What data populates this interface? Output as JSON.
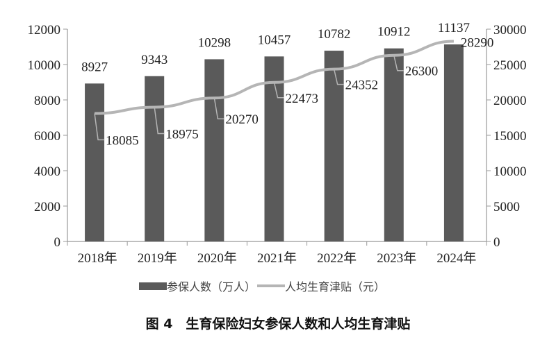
{
  "chart_data": {
    "type": "bar",
    "title": "图 4　生育保险妇女参保人数和人均生育津贴",
    "categories": [
      "2018年",
      "2019年",
      "2020年",
      "2021年",
      "2022年",
      "2023年",
      "2024年"
    ],
    "series": [
      {
        "name": "参保人数（万人）",
        "type": "bar",
        "axis": "left",
        "color": "#5a5a5a",
        "values": [
          8927,
          9343,
          10298,
          10457,
          10782,
          10912,
          11137
        ]
      },
      {
        "name": "人均生育津贴（元）",
        "type": "line",
        "axis": "right",
        "color": "#b5b5b5",
        "values": [
          18085,
          18975,
          20270,
          22473,
          24352,
          26300,
          28290
        ]
      }
    ],
    "y_left": {
      "range": [
        0,
        12000
      ],
      "ticks": [
        0,
        2000,
        4000,
        6000,
        8000,
        10000,
        12000
      ]
    },
    "y_right": {
      "range": [
        0,
        30000
      ],
      "ticks": [
        0,
        5000,
        10000,
        15000,
        20000,
        25000,
        30000
      ]
    },
    "grid": false,
    "legend": "bottom"
  }
}
